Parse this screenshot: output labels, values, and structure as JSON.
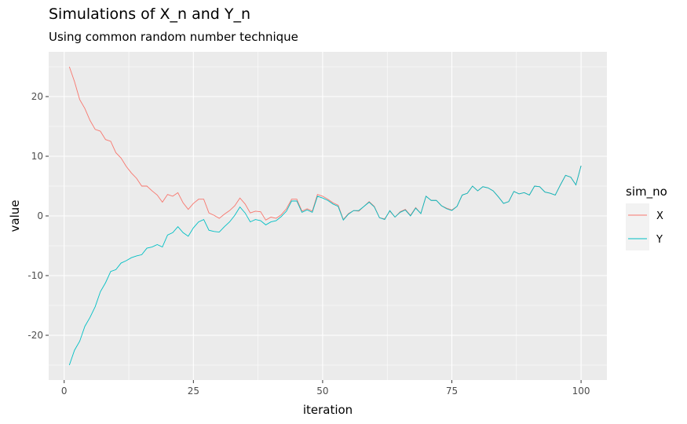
{
  "chart_data": {
    "type": "line",
    "title": "Simulations of X_n and Y_n",
    "subtitle": "Using common random number technique",
    "xlabel": "iteration",
    "ylabel": "value",
    "xlim": [
      -3,
      105
    ],
    "ylim": [
      -27.5,
      27.5
    ],
    "x_ticks": [
      0,
      25,
      50,
      75,
      100
    ],
    "y_ticks": [
      -20,
      -10,
      0,
      10,
      20
    ],
    "grid": true,
    "legend": {
      "title": "sim_no",
      "position": "right"
    },
    "x": [
      1,
      2,
      3,
      4,
      5,
      6,
      7,
      8,
      9,
      10,
      11,
      12,
      13,
      14,
      15,
      16,
      17,
      18,
      19,
      20,
      21,
      22,
      23,
      24,
      25,
      26,
      27,
      28,
      29,
      30,
      31,
      32,
      33,
      34,
      35,
      36,
      37,
      38,
      39,
      40,
      41,
      42,
      43,
      44,
      45,
      46,
      47,
      48,
      49,
      50,
      51,
      52,
      53,
      54,
      55,
      56,
      57,
      58,
      59,
      60,
      61,
      62,
      63,
      64,
      65,
      66,
      67,
      68,
      69,
      70,
      71,
      72,
      73,
      74,
      75,
      76,
      77,
      78,
      79,
      80,
      81,
      82,
      83,
      84,
      85,
      86,
      87,
      88,
      89,
      90,
      91,
      92,
      93,
      94,
      95,
      96,
      97,
      98,
      99,
      100
    ],
    "series": [
      {
        "name": "X",
        "color": "#F8766D",
        "values": [
          25,
          22.5,
          19.5,
          18,
          16,
          14.5,
          14.2,
          12.8,
          12.5,
          10.6,
          9.7,
          8.3,
          7.2,
          6.3,
          5,
          5,
          4.2,
          3.5,
          2.3,
          3.6,
          3.3,
          3.9,
          2.2,
          1.1,
          2.1,
          2.8,
          2.8,
          0.5,
          0.1,
          -0.4,
          0.3,
          0.9,
          1.7,
          3,
          2,
          0.5,
          0.8,
          0.7,
          -0.7,
          -0.2,
          -0.4,
          0.2,
          1.2,
          2.8,
          2.8,
          0.8,
          1.2,
          0.8,
          3.6,
          3.3,
          2.8,
          2.2,
          1.8,
          -0.6,
          0.4,
          0.9,
          0.8,
          1.6,
          2.4,
          1.6,
          -0.3,
          -0.5,
          0.8,
          -0.2,
          0.7,
          1.1,
          0.1,
          1.4,
          0.4,
          3.3,
          2.6,
          2.6,
          1.7,
          1.3,
          1,
          1.6,
          3.5,
          3.8,
          5,
          4.2,
          4.9,
          4.7,
          4.2,
          3.2,
          2.1,
          2.4,
          4.1,
          3.7,
          3.9,
          3.5,
          5,
          4.9,
          4,
          3.8,
          3.5,
          5.2,
          6.8,
          6.5,
          5.2,
          8.4
        ]
      },
      {
        "name": "Y",
        "color": "#00BFC4",
        "values": [
          -25,
          -22.5,
          -21,
          -18.5,
          -17,
          -15.2,
          -12.7,
          -11.2,
          -9.3,
          -9,
          -7.9,
          -7.5,
          -7,
          -6.7,
          -6.5,
          -5.4,
          -5.2,
          -4.8,
          -5.2,
          -3.2,
          -2.8,
          -1.8,
          -2.8,
          -3.4,
          -2,
          -1,
          -0.6,
          -2.4,
          -2.6,
          -2.7,
          -1.8,
          -1,
          0.1,
          1.5,
          0.5,
          -1,
          -0.6,
          -0.8,
          -1.5,
          -1,
          -0.8,
          -0.1,
          0.8,
          2.5,
          2.5,
          0.6,
          1,
          0.6,
          3.3,
          3,
          2.6,
          2,
          1.6,
          -0.7,
          0.3,
          0.9,
          0.9,
          1.6,
          2.3,
          1.5,
          -0.3,
          -0.6,
          0.9,
          -0.2,
          0.6,
          1,
          0,
          1.3,
          0.4,
          3.3,
          2.6,
          2.6,
          1.7,
          1.2,
          0.9,
          1.6,
          3.5,
          3.8,
          5,
          4.2,
          4.9,
          4.7,
          4.2,
          3.2,
          2.1,
          2.4,
          4.1,
          3.7,
          3.9,
          3.5,
          5,
          4.9,
          4,
          3.8,
          3.5,
          5.2,
          6.8,
          6.5,
          5.2,
          8.4
        ]
      }
    ]
  }
}
